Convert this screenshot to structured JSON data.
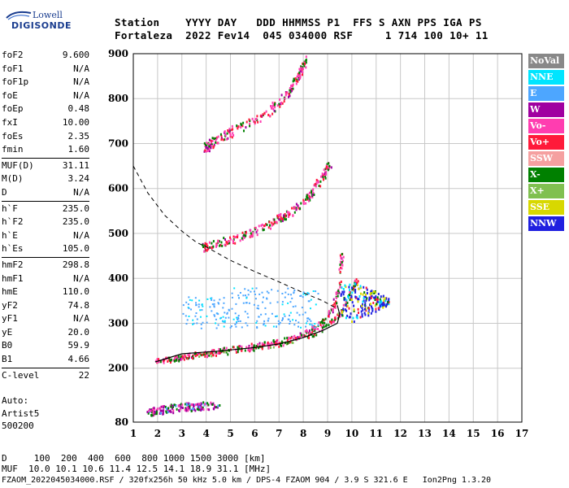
{
  "brand": {
    "line1": "Lowell",
    "line2": "DIGISONDE"
  },
  "header": {
    "line1": "Station    YYYY DAY   DDD HHMMSS P1  FFS S AXN PPS IGA PS",
    "line2": "Fortaleza  2022 Fev14  045 034000 RSF     1 714 100 10+ 11"
  },
  "params": [
    [
      {
        "label": "foF2",
        "value": "9.600"
      },
      {
        "label": "foF1",
        "value": "N/A"
      },
      {
        "label": "foF1p",
        "value": "N/A"
      },
      {
        "label": "foE",
        "value": "N/A"
      },
      {
        "label": "foEp",
        "value": "0.48"
      },
      {
        "label": "fxI",
        "value": "10.00"
      },
      {
        "label": "foEs",
        "value": "2.35"
      },
      {
        "label": "fmin",
        "value": "1.60"
      }
    ],
    [
      {
        "label": "MUF(D)",
        "value": "31.11"
      },
      {
        "label": "M(D)",
        "value": "3.24"
      },
      {
        "label": "D",
        "value": "N/A"
      }
    ],
    [
      {
        "label": "h`F",
        "value": "235.0"
      },
      {
        "label": "h`F2",
        "value": "235.0"
      },
      {
        "label": "h`E",
        "value": "N/A"
      },
      {
        "label": "h`Es",
        "value": "105.0"
      }
    ],
    [
      {
        "label": "hmF2",
        "value": "298.8"
      },
      {
        "label": "hmF1",
        "value": "N/A"
      },
      {
        "label": "hmE",
        "value": "110.0"
      },
      {
        "label": "yF2",
        "value": "74.8"
      },
      {
        "label": "yF1",
        "value": "N/A"
      },
      {
        "label": "yE",
        "value": "20.0"
      },
      {
        "label": "B0",
        "value": "59.9"
      },
      {
        "label": "B1",
        "value": "4.66"
      }
    ],
    [
      {
        "label": "C-level",
        "value": "22"
      }
    ]
  ],
  "auto": {
    "line1": "Auto:",
    "line2": "Artist5",
    "line3": "500200"
  },
  "legend": [
    {
      "label": "NoVal",
      "color": "#888888"
    },
    {
      "label": "NNE",
      "color": "#00e5ff"
    },
    {
      "label": "E",
      "color": "#4da6ff"
    },
    {
      "label": "W",
      "color": "#a000a0"
    },
    {
      "label": "Vo-",
      "color": "#ff3db0"
    },
    {
      "label": "Vo+",
      "color": "#ff1a3a"
    },
    {
      "label": "SSW",
      "color": "#f5a0a0"
    },
    {
      "label": "X-",
      "color": "#008000"
    },
    {
      "label": "X+",
      "color": "#80c050"
    },
    {
      "label": "SSE",
      "color": "#d8d800"
    },
    {
      "label": "NNW",
      "color": "#2020e0"
    }
  ],
  "chart_data": {
    "type": "scatter",
    "xlim": [
      1,
      17
    ],
    "ylim": [
      80,
      900
    ],
    "x_ticks": [
      1,
      2,
      3,
      4,
      5,
      6,
      7,
      8,
      9,
      10,
      11,
      12,
      13,
      14,
      15,
      16,
      17
    ],
    "y_ticks": [
      80,
      200,
      300,
      400,
      500,
      600,
      700,
      800,
      900
    ],
    "grid": true,
    "traces": [
      {
        "name": "O-trace",
        "points": [
          [
            1.9,
            218
          ],
          [
            2.5,
            222
          ],
          [
            3.5,
            232
          ],
          [
            4.5,
            240
          ],
          [
            5.5,
            248
          ],
          [
            6.5,
            256
          ],
          [
            7.5,
            268
          ],
          [
            8.3,
            285
          ],
          [
            8.8,
            305
          ],
          [
            9.2,
            335
          ],
          [
            9.45,
            380
          ],
          [
            9.6,
            470
          ]
        ]
      },
      {
        "name": "X-trace",
        "points": [
          [
            2.4,
            220
          ],
          [
            3.5,
            230
          ],
          [
            4.5,
            236
          ],
          [
            5.5,
            242
          ],
          [
            6.5,
            250
          ],
          [
            7.5,
            262
          ],
          [
            8.5,
            280
          ],
          [
            9.3,
            310
          ],
          [
            9.8,
            350
          ],
          [
            10.2,
            400
          ]
        ]
      },
      {
        "name": "multi-2",
        "points": [
          [
            3.8,
            470
          ],
          [
            4.5,
            480
          ],
          [
            5.5,
            495
          ],
          [
            6.5,
            520
          ],
          [
            7.5,
            550
          ],
          [
            8.3,
            590
          ],
          [
            8.8,
            630
          ],
          [
            9.1,
            660
          ]
        ]
      },
      {
        "name": "multi-3",
        "points": [
          [
            3.9,
            690
          ],
          [
            4.5,
            715
          ],
          [
            5.5,
            740
          ],
          [
            6.5,
            770
          ],
          [
            7.3,
            810
          ],
          [
            7.8,
            855
          ],
          [
            8.1,
            890
          ]
        ]
      },
      {
        "name": "Es-trace",
        "points": [
          [
            1.6,
            105
          ],
          [
            2.0,
            108
          ],
          [
            2.6,
            112
          ],
          [
            3.3,
            116
          ],
          [
            3.9,
            118
          ],
          [
            4.5,
            119
          ]
        ]
      }
    ],
    "profile": [
      [
        1.9,
        214
      ],
      [
        3,
        232
      ],
      [
        4.5,
        238
      ],
      [
        6,
        246
      ],
      [
        7,
        254
      ],
      [
        8,
        268
      ],
      [
        8.8,
        284
      ],
      [
        9.4,
        300
      ],
      [
        9.5,
        320
      ],
      [
        9.4,
        340
      ]
    ],
    "muf_dashed": [
      [
        1,
        650
      ],
      [
        1.6,
        590
      ],
      [
        2.3,
        540
      ],
      [
        3,
        505
      ],
      [
        3.6,
        480
      ],
      [
        4,
        470
      ],
      [
        5,
        440
      ],
      [
        6,
        415
      ],
      [
        7,
        392
      ],
      [
        8,
        368
      ],
      [
        8.8,
        350
      ],
      [
        9.3,
        335
      ]
    ],
    "spread_cluster": {
      "x": [
        9.5,
        11.5
      ],
      "y": [
        300,
        400
      ]
    }
  },
  "footer": {
    "d_label": "D",
    "d_values": "100  200  400  600  800 1000 1500 3000 [km]",
    "muf_label": "MUF",
    "muf_values": "10.0 10.1 10.6 11.4 12.5 14.1 18.9 31.1 [MHz]",
    "file_line": "FZAOM_2022045034000.RSF / 320fx256h 50 kHz 5.0 km / DPS-4 FZAOM 904 / 3.9 S 321.6 E   Ion2Png 1.3.20"
  }
}
